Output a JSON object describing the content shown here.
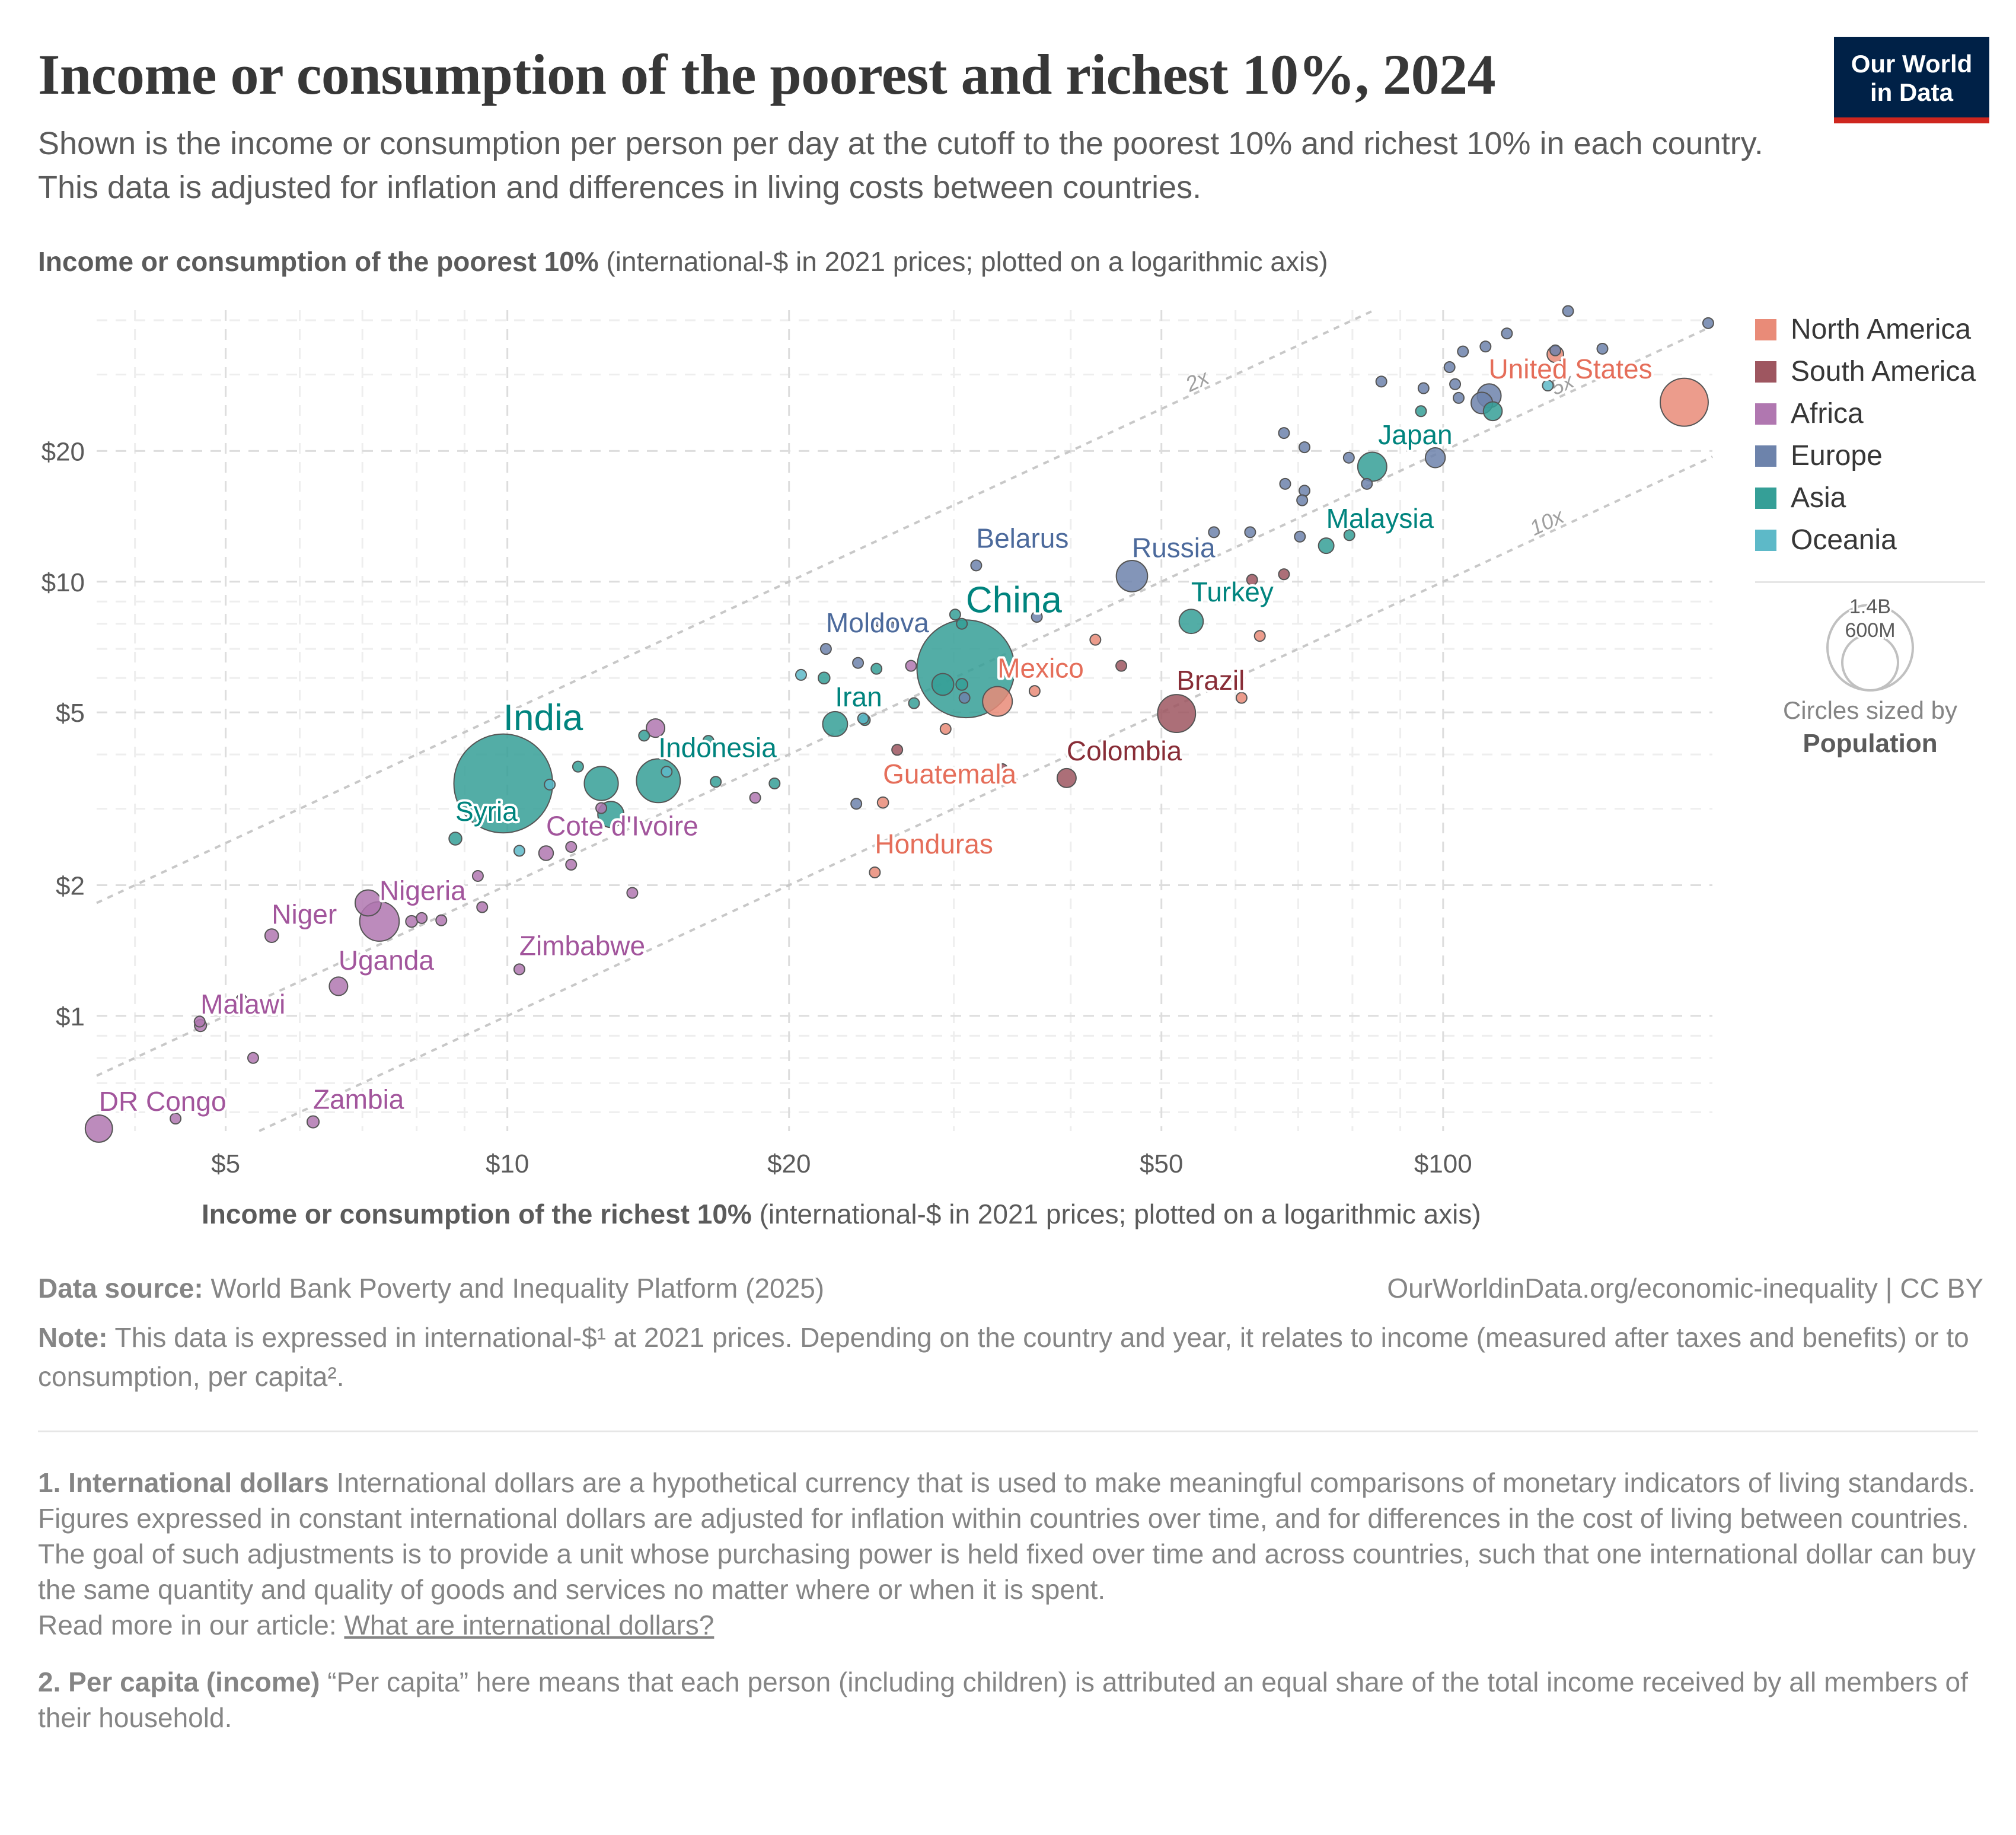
{
  "header": {
    "title": "Income or consumption of the poorest and richest 10%, 2024",
    "subtitle": "Shown is the income or consumption per person per day at the cutoff to the poorest 10% and richest 10% in each country. This data is adjusted for inflation and differences in living costs between countries.",
    "logo_line1": "Our World",
    "logo_line2": "in Data"
  },
  "colors": {
    "North America": "#E56E5A",
    "South America": "#9A5129",
    "Africa": "#A652BA",
    "Europe": "#4C6A9C",
    "Asia": "#00847E",
    "Oceania": "#38AABA"
  },
  "fill_colors": {
    "North America": "#E98B78",
    "South America": "#9E5660",
    "Africa": "#B077B0",
    "Europe": "#6D83AB",
    "Asia": "#359F97",
    "Oceania": "#5DB9C8"
  },
  "label_colors": {
    "North America": "#E56E5A",
    "South America": "#882D37",
    "Africa": "#A2559C",
    "Europe": "#4C6A9C",
    "Asia": "#00847E",
    "Oceania": "#38AABA"
  },
  "legend": {
    "items": [
      "North America",
      "South America",
      "Africa",
      "Europe",
      "Asia",
      "Oceania"
    ],
    "size_large": "1.4B",
    "size_small": "600M",
    "size_caption": "Circles sized by",
    "size_variable": "Population"
  },
  "footer": {
    "source_label": "Data source:",
    "source_text": " World Bank Poverty and Inequality Platform (2025)",
    "credit": "OurWorldinData.org/economic-inequality | CC BY",
    "note_label": "Note:",
    "note_text": " This data is expressed in international-$¹ at 2021 prices. Depending on the country and year, it relates to income (measured after taxes and benefits) or to consumption, per capita².",
    "fn1_title": "1. International dollars",
    "fn1_p1": " International dollars are a hypothetical currency that is used to make meaningful comparisons of monetary indicators of living standards.",
    "fn1_p2": "Figures expressed in constant international dollars are adjusted for inflation within countries over time, and for differences in the cost of living between countries.",
    "fn1_p3": "The goal of such adjustments is to provide a unit whose purchasing power is held fixed over time and across countries, such that one international dollar can buy the same quantity and quality of goods and services no matter where or when it is spent.",
    "fn1_p4": "Read more in our article: ",
    "fn1_link": "What are international dollars?",
    "fn2_title": "2. Per capita (income)",
    "fn2_text": " “Per capita” here means that each person (including children) is attributed an equal share of the total income received by all members of their household."
  },
  "chart_data": {
    "type": "scatter",
    "title": "Income or consumption of the poorest and richest 10%, 2024",
    "xlabel_bold": "Income or consumption of the richest 10%",
    "xlabel_rest": " (international-$ in 2021 prices; plotted on a logarithmic axis)",
    "ylabel_bold": "Income or consumption of the poorest 10%",
    "ylabel_rest": " (international-$ in 2021 prices; plotted on a logarithmic axis)",
    "xscale": "log",
    "yscale": "log",
    "xlim": [
      3.64,
      194
    ],
    "ylim": [
      0.543,
      42.2
    ],
    "xticks": [
      {
        "v": 5,
        "label": "$5"
      },
      {
        "v": 10,
        "label": "$10"
      },
      {
        "v": 20,
        "label": "$20"
      },
      {
        "v": 50,
        "label": "$50"
      },
      {
        "v": 100,
        "label": "$100"
      }
    ],
    "yticks": [
      {
        "v": 1,
        "label": "$1"
      },
      {
        "v": 2,
        "label": "$2"
      },
      {
        "v": 5,
        "label": "$5"
      },
      {
        "v": 10,
        "label": "$10"
      },
      {
        "v": 20,
        "label": "$20"
      }
    ],
    "x_minor_grid": [
      4,
      6,
      7,
      8,
      9,
      30,
      40,
      60,
      70,
      80,
      90
    ],
    "y_minor_grid": [
      0.6,
      0.7,
      0.8,
      0.9,
      3,
      4,
      6,
      7,
      8,
      9,
      30,
      40
    ],
    "grid": true,
    "legend_position": "right",
    "ratio_lines": [
      {
        "ratio": 2,
        "label": "2x",
        "label_x": 55
      },
      {
        "ratio": 5,
        "label": "5x",
        "label_x": 135
      },
      {
        "ratio": 10,
        "label": "10x",
        "label_x": 130
      }
    ],
    "size_variable": "Population (millions)",
    "points": [
      {
        "name": "United States",
        "region": "North America",
        "x": 181,
        "y": 25.9,
        "pop": 340,
        "label": true,
        "label_size": "m"
      },
      {
        "name": "Japan",
        "region": "Asia",
        "x": 84,
        "y": 18.4,
        "pop": 124,
        "label": true,
        "label_size": "m"
      },
      {
        "name": "Malaysia",
        "region": "Asia",
        "x": 75,
        "y": 12.1,
        "pop": 35,
        "label": true,
        "label_size": "m"
      },
      {
        "name": "Belarus",
        "region": "Europe",
        "x": 31.7,
        "y": 10.9,
        "pop": 9,
        "label": true,
        "label_size": "m"
      },
      {
        "name": "Russia",
        "region": "Europe",
        "x": 46.5,
        "y": 10.3,
        "pop": 144,
        "label": true,
        "label_size": "m"
      },
      {
        "name": "Turkey",
        "region": "Asia",
        "x": 53.8,
        "y": 8.1,
        "pop": 86,
        "label": true,
        "label_size": "m"
      },
      {
        "name": "China",
        "region": "Asia",
        "x": 30.9,
        "y": 6.3,
        "pop": 1410,
        "label": true,
        "label_size": "l"
      },
      {
        "name": "Moldova",
        "region": "Europe",
        "x": 21.9,
        "y": 7.0,
        "pop": 3,
        "label": true,
        "label_size": "m"
      },
      {
        "name": "Mexico",
        "region": "North America",
        "x": 33.4,
        "y": 5.3,
        "pop": 130,
        "label": true,
        "label_size": "m"
      },
      {
        "name": "Brazil",
        "region": "South America",
        "x": 51.9,
        "y": 4.97,
        "pop": 212,
        "label": true,
        "label_size": "m"
      },
      {
        "name": "Iran",
        "region": "Asia",
        "x": 22.4,
        "y": 4.7,
        "pop": 91,
        "label": true,
        "label_size": "m"
      },
      {
        "name": "Colombia",
        "region": "South America",
        "x": 39.6,
        "y": 3.53,
        "pop": 53,
        "label": true,
        "label_size": "m"
      },
      {
        "name": "Guatemala",
        "region": "North America",
        "x": 25.2,
        "y": 3.1,
        "pop": 18,
        "label": true,
        "label_size": "m"
      },
      {
        "name": "Honduras",
        "region": "North America",
        "x": 24.7,
        "y": 2.14,
        "pop": 11,
        "label": true,
        "label_size": "m"
      },
      {
        "name": "India",
        "region": "Asia",
        "x": 9.9,
        "y": 3.43,
        "pop": 1440,
        "label": true,
        "label_size": "l"
      },
      {
        "name": "Indonesia",
        "region": "Asia",
        "x": 14.5,
        "y": 3.48,
        "pop": 283,
        "label": true,
        "label_size": "m"
      },
      {
        "name": "Syria",
        "region": "Asia",
        "x": 8.8,
        "y": 2.56,
        "pop": 24,
        "label": true,
        "label_size": "m"
      },
      {
        "name": "Cote d'Ivoire",
        "region": "Africa",
        "x": 11.0,
        "y": 2.37,
        "pop": 31,
        "label": true,
        "label_size": "m"
      },
      {
        "name": "Nigeria",
        "region": "Africa",
        "x": 7.3,
        "y": 1.65,
        "pop": 230,
        "label": true,
        "label_size": "m"
      },
      {
        "name": "Niger",
        "region": "Africa",
        "x": 5.6,
        "y": 1.53,
        "pop": 27,
        "label": true,
        "label_size": "m"
      },
      {
        "name": "Uganda",
        "region": "Africa",
        "x": 6.6,
        "y": 1.17,
        "pop": 50,
        "label": true,
        "label_size": "m"
      },
      {
        "name": "Zimbabwe",
        "region": "Africa",
        "x": 10.3,
        "y": 1.28,
        "pop": 16,
        "label": true,
        "label_size": "m"
      },
      {
        "name": "Malawi",
        "region": "Africa",
        "x": 4.7,
        "y": 0.95,
        "pop": 21,
        "label": true,
        "label_size": "m"
      },
      {
        "name": "DR Congo",
        "region": "Africa",
        "x": 3.66,
        "y": 0.55,
        "pop": 109,
        "label": true,
        "label_size": "m"
      },
      {
        "name": "Zambia",
        "region": "Africa",
        "x": 6.2,
        "y": 0.57,
        "pop": 21,
        "label": true,
        "label_size": "m"
      },
      {
        "name": "",
        "region": "Europe",
        "x": 136,
        "y": 42,
        "pop": 6
      },
      {
        "name": "",
        "region": "Europe",
        "x": 192,
        "y": 39.4,
        "pop": 1
      },
      {
        "name": "",
        "region": "Europe",
        "x": 117,
        "y": 37.3,
        "pop": 6
      },
      {
        "name": "",
        "region": "Europe",
        "x": 111,
        "y": 34.8,
        "pop": 6
      },
      {
        "name": "",
        "region": "Europe",
        "x": 105,
        "y": 33.9,
        "pop": 6
      },
      {
        "name": "",
        "region": "Europe",
        "x": 101.6,
        "y": 31.2,
        "pop": 6
      },
      {
        "name": "",
        "region": "Europe",
        "x": 131.8,
        "y": 34.1,
        "pop": 9
      },
      {
        "name": "",
        "region": "Europe",
        "x": 148,
        "y": 34.4,
        "pop": 6
      },
      {
        "name": "",
        "region": "Europe",
        "x": 85.9,
        "y": 28.9,
        "pop": 5
      },
      {
        "name": "",
        "region": "Europe",
        "x": 95.3,
        "y": 27.9,
        "pop": 5
      },
      {
        "name": "",
        "region": "Europe",
        "x": 103,
        "y": 28.5,
        "pop": 9
      },
      {
        "name": "",
        "region": "Europe",
        "x": 103.9,
        "y": 26.5,
        "pop": 6
      },
      {
        "name": "",
        "region": "Europe",
        "x": 112,
        "y": 26.8,
        "pop": 84
      },
      {
        "name": "",
        "region": "Europe",
        "x": 110,
        "y": 25.8,
        "pop": 68
      },
      {
        "name": "",
        "region": "Europe",
        "x": 67.6,
        "y": 22.0,
        "pop": 4
      },
      {
        "name": "",
        "region": "Europe",
        "x": 71.1,
        "y": 20.4,
        "pop": 10
      },
      {
        "name": "",
        "region": "Europe",
        "x": 79.3,
        "y": 19.3,
        "pop": 5
      },
      {
        "name": "",
        "region": "Europe",
        "x": 98.1,
        "y": 19.3,
        "pop": 58
      },
      {
        "name": "",
        "region": "Europe",
        "x": 67.8,
        "y": 16.8,
        "pop": 4
      },
      {
        "name": "",
        "region": "Europe",
        "x": 71.1,
        "y": 16.2,
        "pop": 4
      },
      {
        "name": "",
        "region": "Europe",
        "x": 70.7,
        "y": 15.4,
        "pop": 4
      },
      {
        "name": "",
        "region": "Europe",
        "x": 82.9,
        "y": 16.8,
        "pop": 4
      },
      {
        "name": "",
        "region": "Europe",
        "x": 70.3,
        "y": 12.7,
        "pop": 4
      },
      {
        "name": "",
        "region": "Europe",
        "x": 62.2,
        "y": 13.0,
        "pop": 4
      },
      {
        "name": "",
        "region": "Europe",
        "x": 56.9,
        "y": 13.0,
        "pop": 3
      },
      {
        "name": "",
        "region": "Europe",
        "x": 36.8,
        "y": 8.3,
        "pop": 4
      },
      {
        "name": "",
        "region": "Europe",
        "x": 25.0,
        "y": 8.1,
        "pop": 4
      },
      {
        "name": "",
        "region": "Europe",
        "x": 25.6,
        "y": 7.9,
        "pop": 3
      },
      {
        "name": "",
        "region": "Europe",
        "x": 23.7,
        "y": 6.5,
        "pop": 3
      },
      {
        "name": "",
        "region": "Europe",
        "x": 30.8,
        "y": 5.4,
        "pop": 3
      },
      {
        "name": "",
        "region": "Europe",
        "x": 23.6,
        "y": 3.08,
        "pop": 3
      },
      {
        "name": "",
        "region": "Asia",
        "x": 94.7,
        "y": 24.7,
        "pop": 4
      },
      {
        "name": "",
        "region": "Asia",
        "x": 113,
        "y": 24.7,
        "pop": 52
      },
      {
        "name": "",
        "region": "Asia",
        "x": 79.4,
        "y": 12.8,
        "pop": 4
      },
      {
        "name": "",
        "region": "Asia",
        "x": 30.1,
        "y": 8.4,
        "pop": 4
      },
      {
        "name": "",
        "region": "Asia",
        "x": 30.6,
        "y": 8.0,
        "pop": 4
      },
      {
        "name": "",
        "region": "Asia",
        "x": 27.2,
        "y": 5.25,
        "pop": 4
      },
      {
        "name": "",
        "region": "Asia",
        "x": 24.8,
        "y": 6.3,
        "pop": 4
      },
      {
        "name": "",
        "region": "Asia",
        "x": 21.8,
        "y": 6.0,
        "pop": 20
      },
      {
        "name": "",
        "region": "Asia",
        "x": 29.2,
        "y": 5.8,
        "pop": 70
      },
      {
        "name": "",
        "region": "Asia",
        "x": 30.6,
        "y": 5.8,
        "pop": 20
      },
      {
        "name": "",
        "region": "Asia",
        "x": 24.1,
        "y": 4.8,
        "pop": 3
      },
      {
        "name": "",
        "region": "Asia",
        "x": 11.9,
        "y": 3.75,
        "pop": 4
      },
      {
        "name": "",
        "region": "Asia",
        "x": 12.6,
        "y": 3.43,
        "pop": 170
      },
      {
        "name": "",
        "region": "Asia",
        "x": 12.9,
        "y": 2.91,
        "pop": 100
      },
      {
        "name": "",
        "region": "Asia",
        "x": 14.0,
        "y": 4.42,
        "pop": 4
      },
      {
        "name": "",
        "region": "Asia",
        "x": 16.4,
        "y": 4.3,
        "pop": 2
      },
      {
        "name": "",
        "region": "Asia",
        "x": 16.7,
        "y": 3.46,
        "pop": 4
      },
      {
        "name": "",
        "region": "Asia",
        "x": 19.3,
        "y": 3.43,
        "pop": 4
      },
      {
        "name": "",
        "region": "Oceania",
        "x": 129.4,
        "y": 28.3,
        "pop": 10
      },
      {
        "name": "",
        "region": "Oceania",
        "x": 20.6,
        "y": 6.1,
        "pop": 3
      },
      {
        "name": "",
        "region": "Oceania",
        "x": 24.0,
        "y": 4.84,
        "pop": 3
      },
      {
        "name": "",
        "region": "Oceania",
        "x": 11.1,
        "y": 3.41,
        "pop": 3
      },
      {
        "name": "",
        "region": "Oceania",
        "x": 10.3,
        "y": 2.4,
        "pop": 3
      },
      {
        "name": "",
        "region": "Oceania",
        "x": 14.8,
        "y": 3.65,
        "pop": 3
      },
      {
        "name": "",
        "region": "North America",
        "x": 131.8,
        "y": 33.4,
        "pop": 40
      },
      {
        "name": "",
        "region": "North America",
        "x": 42.5,
        "y": 7.35,
        "pop": 4
      },
      {
        "name": "",
        "region": "North America",
        "x": 63.7,
        "y": 7.5,
        "pop": 4
      },
      {
        "name": "",
        "region": "North America",
        "x": 36.6,
        "y": 5.6,
        "pop": 4
      },
      {
        "name": "",
        "region": "North America",
        "x": 60.9,
        "y": 5.4,
        "pop": 4
      },
      {
        "name": "",
        "region": "North America",
        "x": 29.4,
        "y": 4.58,
        "pop": 4
      },
      {
        "name": "",
        "region": "South America",
        "x": 62.5,
        "y": 10.1,
        "pop": 3
      },
      {
        "name": "",
        "region": "South America",
        "x": 67.6,
        "y": 10.4,
        "pop": 3
      },
      {
        "name": "",
        "region": "South America",
        "x": 45.3,
        "y": 6.4,
        "pop": 3
      },
      {
        "name": "",
        "region": "South America",
        "x": 26.1,
        "y": 4.1,
        "pop": 8
      },
      {
        "name": "",
        "region": "South America",
        "x": 33.8,
        "y": 3.7,
        "pop": 3
      },
      {
        "name": "",
        "region": "Africa",
        "x": 14.4,
        "y": 4.6,
        "pop": 50
      },
      {
        "name": "",
        "region": "Africa",
        "x": 27.0,
        "y": 6.4,
        "pop": 3
      },
      {
        "name": "",
        "region": "Africa",
        "x": 18.4,
        "y": 3.18,
        "pop": 3
      },
      {
        "name": "",
        "region": "Africa",
        "x": 12.6,
        "y": 3.01,
        "pop": 4
      },
      {
        "name": "",
        "region": "Africa",
        "x": 11.7,
        "y": 2.45,
        "pop": 3
      },
      {
        "name": "",
        "region": "Africa",
        "x": 11.7,
        "y": 2.23,
        "pop": 3
      },
      {
        "name": "",
        "region": "Africa",
        "x": 13.6,
        "y": 1.92,
        "pop": 4
      },
      {
        "name": "",
        "region": "Africa",
        "x": 9.3,
        "y": 2.1,
        "pop": 3
      },
      {
        "name": "",
        "region": "Africa",
        "x": 9.4,
        "y": 1.78,
        "pop": 3
      },
      {
        "name": "",
        "region": "Africa",
        "x": 7.1,
        "y": 1.82,
        "pop": 100
      },
      {
        "name": "",
        "region": "Africa",
        "x": 7.9,
        "y": 1.65,
        "pop": 20
      },
      {
        "name": "",
        "region": "Africa",
        "x": 8.1,
        "y": 1.68,
        "pop": 5
      },
      {
        "name": "",
        "region": "Africa",
        "x": 8.5,
        "y": 1.66,
        "pop": 4
      },
      {
        "name": "",
        "region": "Africa",
        "x": 5.2,
        "y": 1.09,
        "pop": 4
      },
      {
        "name": "",
        "region": "Africa",
        "x": 4.69,
        "y": 0.97,
        "pop": 4
      },
      {
        "name": "",
        "region": "Africa",
        "x": 5.35,
        "y": 0.8,
        "pop": 3
      },
      {
        "name": "",
        "region": "Africa",
        "x": 4.42,
        "y": 0.58,
        "pop": 6
      }
    ]
  }
}
